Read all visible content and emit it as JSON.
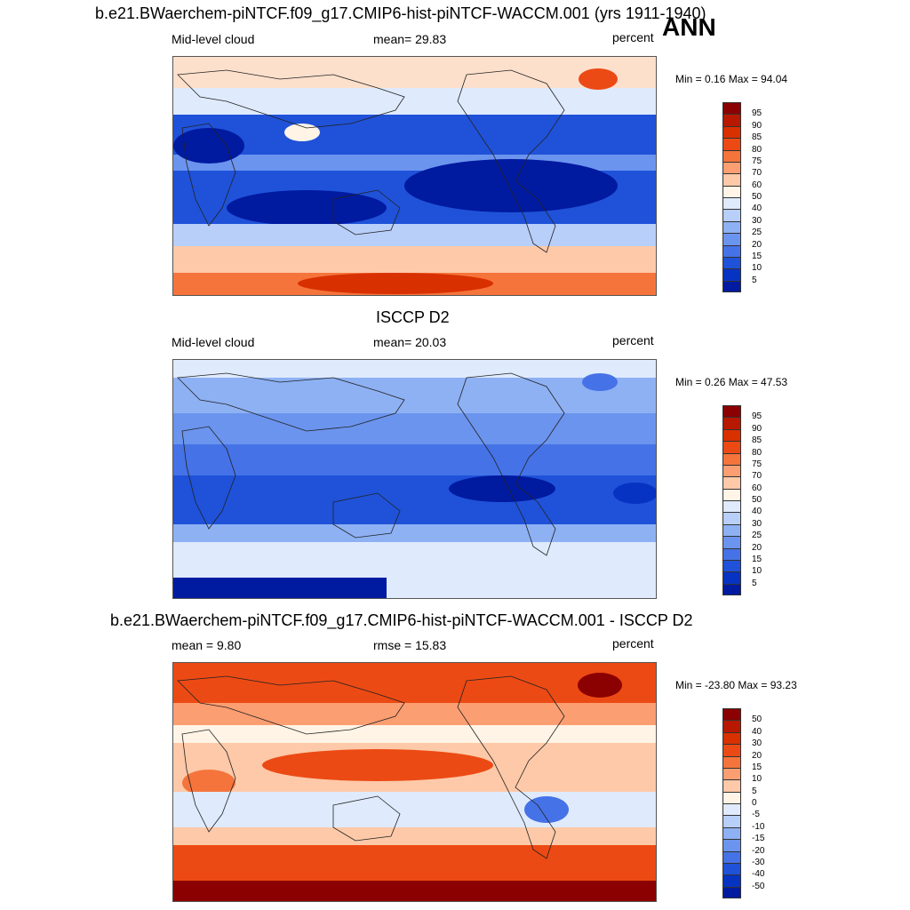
{
  "header": {
    "title": "b.e21.BWaerchem-piNTCF.f09_g17.CMIP6-hist-piNTCF-WACCM.001 (yrs 1911-1940)",
    "season": "ANN"
  },
  "panels": [
    {
      "id": "model",
      "title": "",
      "left_label": "Mid-level cloud",
      "center_label": "mean=  29.83",
      "right_label": "percent",
      "minmax": "Min =   0.16 Max =  94.04",
      "colorbar_labels": [
        "95",
        "90",
        "85",
        "80",
        "75",
        "70",
        "60",
        "50",
        "40",
        "30",
        "25",
        "20",
        "15",
        "10",
        "5"
      ],
      "colorbar_colors": [
        "#8b0000",
        "#b81800",
        "#d93000",
        "#ec4a14",
        "#f5743c",
        "#fb9e72",
        "#fdc9a8",
        "#fff4e6",
        "#dfeafd",
        "#b8cffa",
        "#8eb1f4",
        "#6b94ee",
        "#4572e6",
        "#1f52d9",
        "#0733c2",
        "#001aa0"
      ]
    },
    {
      "id": "obs",
      "title": "ISCCP D2",
      "left_label": "Mid-level cloud",
      "center_label": "mean=  20.03",
      "right_label": "percent",
      "minmax": "Min =   0.26 Max =  47.53",
      "colorbar_labels": [
        "95",
        "90",
        "85",
        "80",
        "75",
        "70",
        "60",
        "50",
        "40",
        "30",
        "25",
        "20",
        "15",
        "10",
        "5"
      ],
      "colorbar_colors": [
        "#8b0000",
        "#b81800",
        "#d93000",
        "#ec4a14",
        "#f5743c",
        "#fb9e72",
        "#fdc9a8",
        "#fff4e6",
        "#dfeafd",
        "#b8cffa",
        "#8eb1f4",
        "#6b94ee",
        "#4572e6",
        "#1f52d9",
        "#0733c2",
        "#001aa0"
      ]
    },
    {
      "id": "diff",
      "title": "b.e21.BWaerchem-piNTCF.f09_g17.CMIP6-hist-piNTCF-WACCM.001 - ISCCP D2",
      "left_label": "mean =   9.80",
      "center_label": "rmse =  15.83",
      "right_label": "percent",
      "minmax": "Min = -23.80 Max =  93.23",
      "colorbar_labels": [
        "50",
        "40",
        "30",
        "20",
        "15",
        "10",
        "5",
        "0",
        "-5",
        "-10",
        "-15",
        "-20",
        "-30",
        "-40",
        "-50"
      ],
      "colorbar_colors": [
        "#8b0000",
        "#b81800",
        "#d93000",
        "#ec4a14",
        "#f5743c",
        "#fb9e72",
        "#fdc9a8",
        "#fff4e6",
        "#dfeafd",
        "#b8cffa",
        "#8eb1f4",
        "#6b94ee",
        "#4572e6",
        "#1f52d9",
        "#0733c2",
        "#001aa0"
      ]
    }
  ],
  "chart_data": [
    {
      "type": "heatmap",
      "title": "b.e21.BWaerchem-piNTCF.f09_g17.CMIP6-hist-piNTCF-WACCM.001 (yrs 1911-1940)",
      "variable": "Mid-level cloud",
      "units": "percent",
      "mean": 29.83,
      "min": 0.16,
      "max": 94.04,
      "contour_levels": [
        5,
        10,
        15,
        20,
        25,
        30,
        40,
        50,
        60,
        70,
        75,
        80,
        85,
        90,
        95
      ]
    },
    {
      "type": "heatmap",
      "title": "ISCCP D2",
      "variable": "Mid-level cloud",
      "units": "percent",
      "mean": 20.03,
      "min": 0.26,
      "max": 47.53,
      "contour_levels": [
        5,
        10,
        15,
        20,
        25,
        30,
        40,
        50,
        60,
        70,
        75,
        80,
        85,
        90,
        95
      ]
    },
    {
      "type": "heatmap",
      "title": "b.e21.BWaerchem-piNTCF.f09_g17.CMIP6-hist-piNTCF-WACCM.001 - ISCCP D2",
      "units": "percent",
      "mean": 9.8,
      "rmse": 15.83,
      "min": -23.8,
      "max": 93.23,
      "contour_levels": [
        -50,
        -40,
        -30,
        -20,
        -15,
        -10,
        -5,
        0,
        5,
        10,
        15,
        20,
        30,
        40,
        50
      ]
    }
  ]
}
